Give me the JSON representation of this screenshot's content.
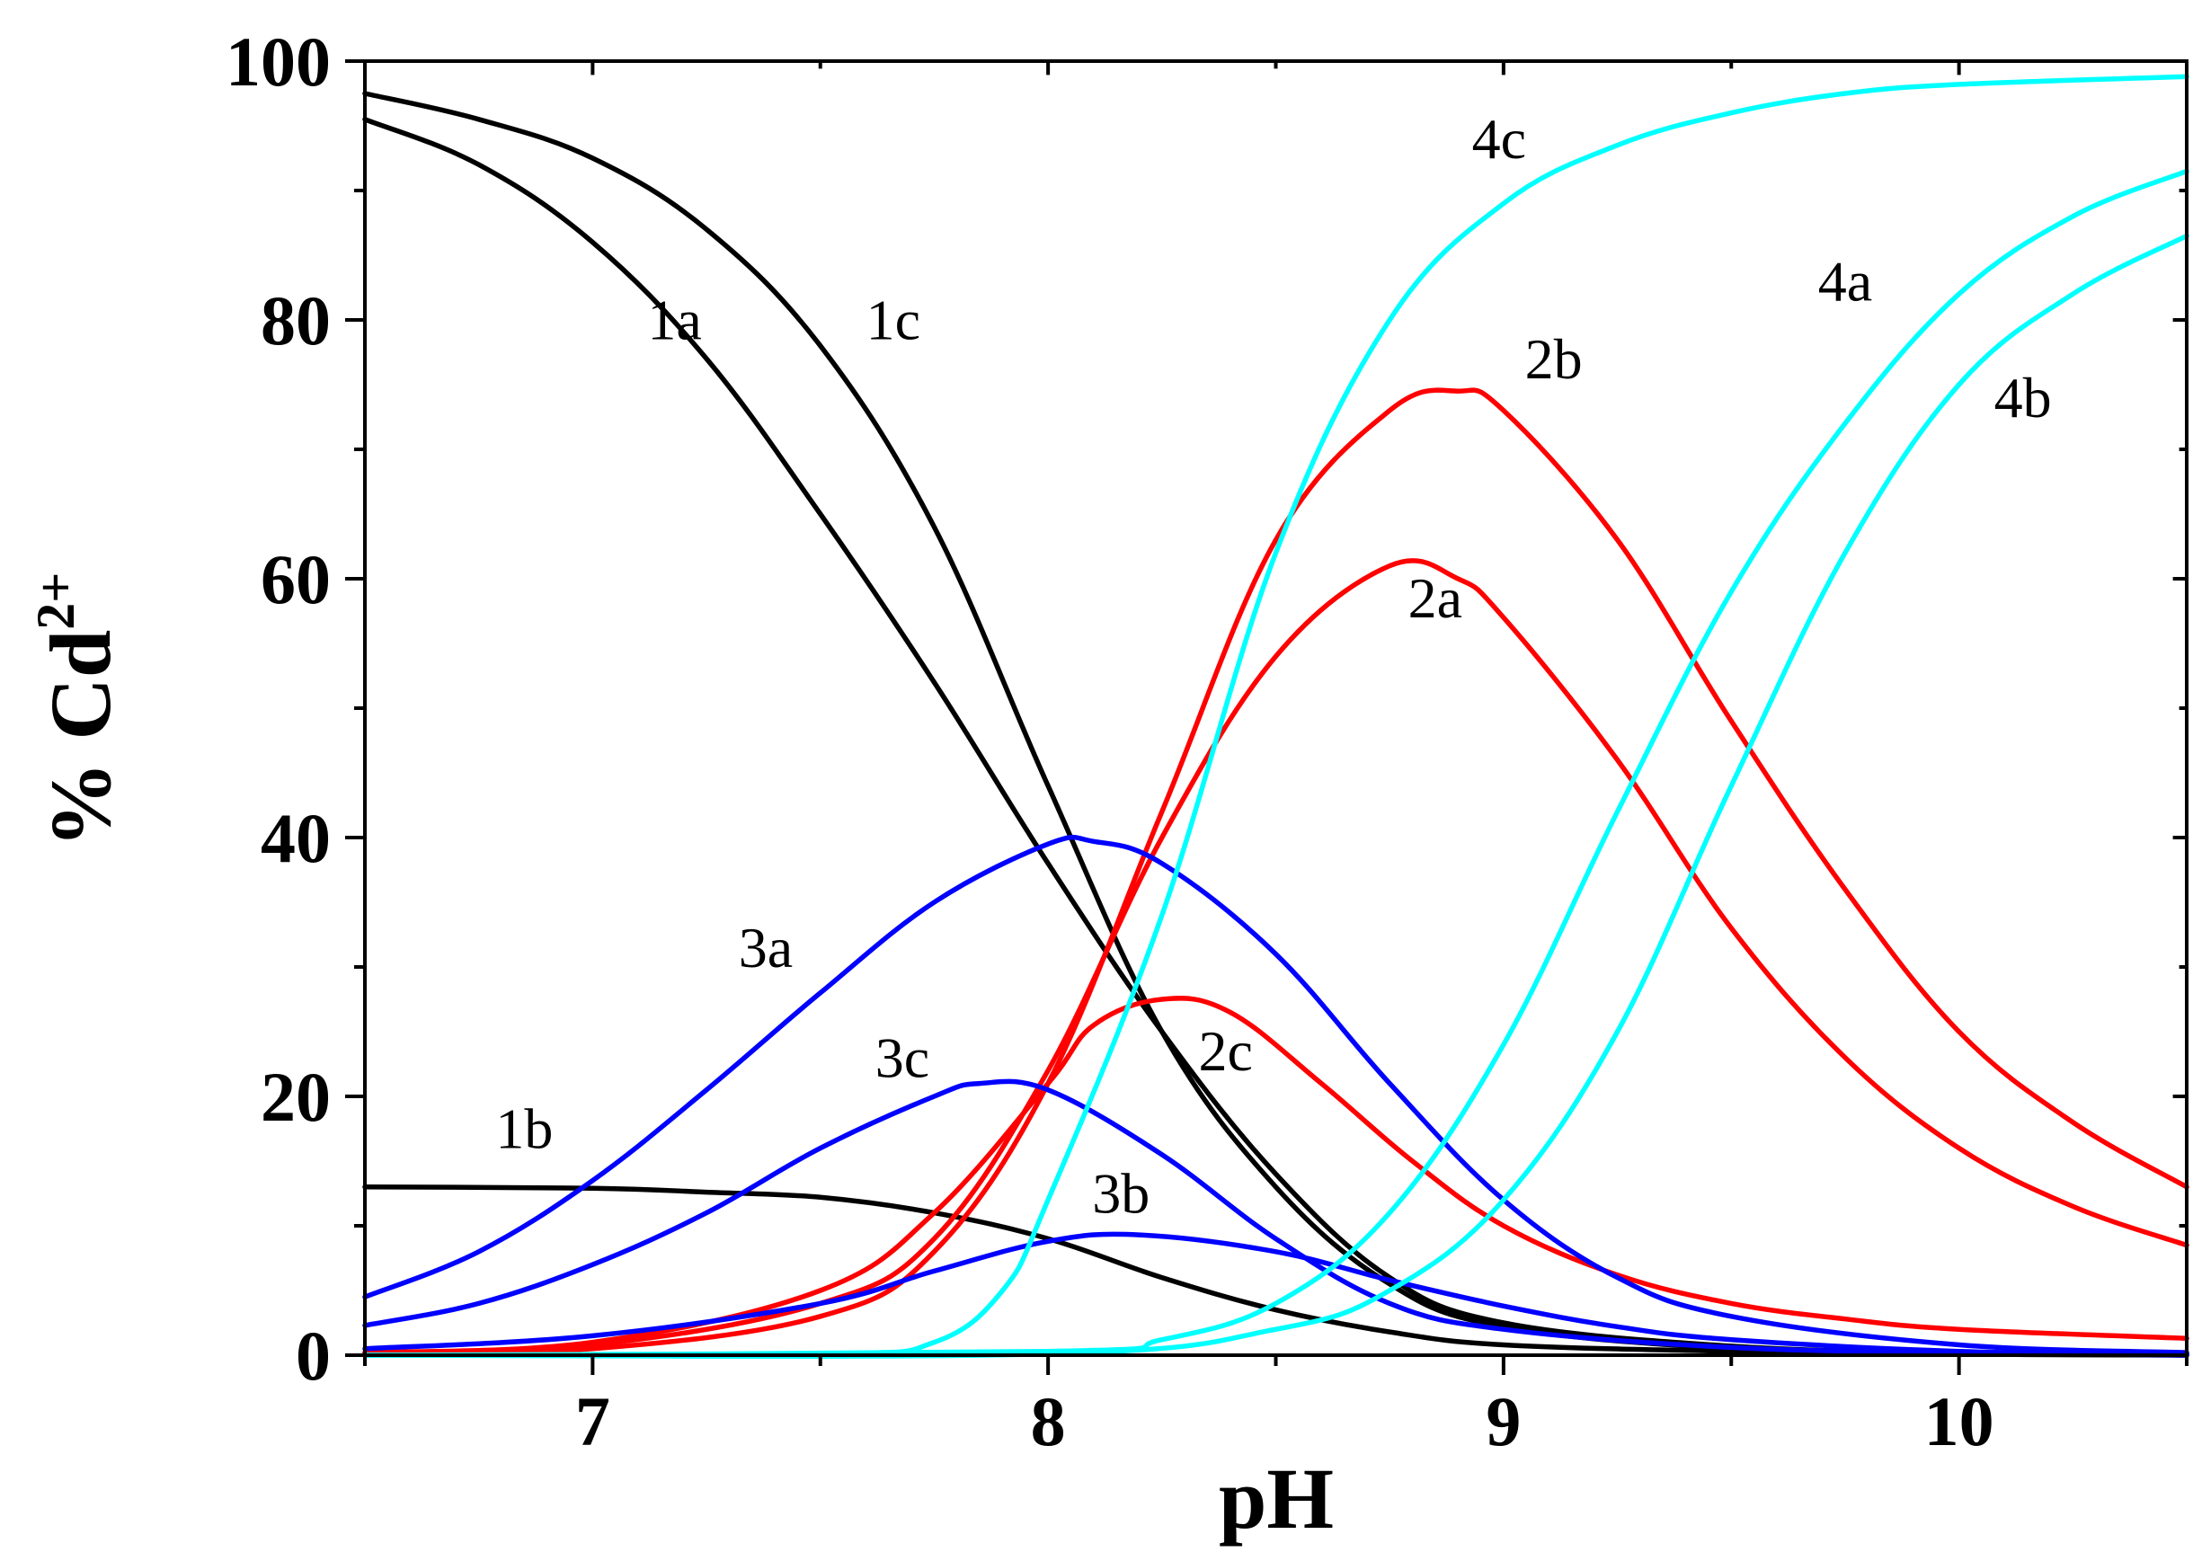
{
  "chart_data": {
    "type": "line",
    "title": "",
    "xlabel": "pH",
    "ylabel": "% Cd",
    "ylabel_superscript": "2+",
    "xlim": [
      6.5,
      10.5
    ],
    "ylim": [
      0,
      100
    ],
    "x_ticks": [
      7,
      8,
      9,
      10
    ],
    "y_ticks": [
      0,
      20,
      40,
      60,
      80,
      100
    ],
    "grid": false,
    "colors": {
      "black": "#000000",
      "red": "#ff0000",
      "blue": "#0000ff",
      "cyan": "#00ffff"
    },
    "series": [
      {
        "name": "1a",
        "color": "#000000",
        "x": [
          6.5,
          6.75,
          7.0,
          7.25,
          7.5,
          7.75,
          8.0,
          8.25,
          8.5,
          8.75,
          9.0,
          9.5,
          10.0,
          10.5
        ],
        "y": [
          95.5,
          92,
          86,
          77,
          65,
          52,
          38,
          25,
          14,
          6,
          2.5,
          0.7,
          0.2,
          0.1
        ]
      },
      {
        "name": "1b",
        "color": "#000000",
        "x": [
          6.5,
          7.0,
          7.25,
          7.5,
          7.75,
          8.0,
          8.25,
          8.5,
          8.75,
          9.0,
          9.5,
          10.0,
          10.5
        ],
        "y": [
          13,
          12.9,
          12.6,
          12.2,
          11,
          9,
          6,
          3.5,
          1.8,
          0.8,
          0.3,
          0.1,
          0
        ]
      },
      {
        "name": "1c",
        "color": "#000000",
        "x": [
          6.5,
          6.75,
          7.0,
          7.25,
          7.5,
          7.75,
          8.0,
          8.25,
          8.5,
          8.75,
          9.0,
          9.5,
          10.0,
          10.5
        ],
        "y": [
          97.5,
          95.5,
          92.5,
          87,
          78,
          64,
          44,
          25,
          13,
          5.5,
          2.2,
          0.5,
          0.1,
          0
        ]
      },
      {
        "name": "2a",
        "color": "#ff0000",
        "x": [
          6.5,
          7.0,
          7.5,
          7.75,
          8.0,
          8.25,
          8.5,
          8.75,
          8.9,
          9.0,
          9.25,
          9.5,
          9.75,
          10.0,
          10.25,
          10.5
        ],
        "y": [
          0.2,
          0.8,
          4,
          9,
          22,
          40,
          54,
          61,
          60,
          57,
          46,
          33,
          23,
          16,
          11.5,
          8.5
        ]
      },
      {
        "name": "2b",
        "color": "#ff0000",
        "x": [
          6.5,
          7.0,
          7.5,
          7.75,
          8.0,
          8.25,
          8.5,
          8.75,
          8.9,
          9.0,
          9.25,
          9.5,
          9.75,
          10.0,
          10.25,
          10.5
        ],
        "y": [
          0.2,
          0.5,
          3,
          8,
          21,
          42,
          63,
          73,
          74.5,
          73,
          63,
          49,
          36,
          25,
          18,
          13
        ]
      },
      {
        "name": "2c",
        "color": "#ff0000",
        "x": [
          6.5,
          7.0,
          7.5,
          7.75,
          8.0,
          8.1,
          8.25,
          8.4,
          8.6,
          8.8,
          9.0,
          9.25,
          9.5,
          9.75,
          10.0,
          10.5
        ],
        "y": [
          0.2,
          1,
          5,
          11,
          21,
          25.5,
          27.5,
          26.5,
          21,
          15,
          10,
          6.2,
          4,
          2.8,
          2,
          1.3
        ]
      },
      {
        "name": "3a",
        "color": "#0000ff",
        "x": [
          6.5,
          6.75,
          7.0,
          7.25,
          7.5,
          7.75,
          8.0,
          8.1,
          8.25,
          8.5,
          8.75,
          9.0,
          9.25,
          9.5,
          10.0,
          10.5
        ],
        "y": [
          4.5,
          8,
          13.5,
          20.5,
          28,
          35,
          39.5,
          39.7,
          38,
          31,
          21,
          12,
          6,
          3,
          0.8,
          0.2
        ]
      },
      {
        "name": "3b",
        "color": "#0000ff",
        "x": [
          6.5,
          7.0,
          7.5,
          7.75,
          8.0,
          8.2,
          8.5,
          8.75,
          9.0,
          9.25,
          9.5,
          10.0,
          10.5
        ],
        "y": [
          0.5,
          1.5,
          4,
          6.5,
          8.8,
          9.3,
          8,
          5.8,
          3.8,
          2.2,
          1.2,
          0.3,
          0.1
        ]
      },
      {
        "name": "3c",
        "color": "#0000ff",
        "x": [
          6.5,
          6.75,
          7.0,
          7.25,
          7.5,
          7.75,
          7.85,
          8.0,
          8.25,
          8.5,
          8.75,
          9.0,
          9.5,
          10.0,
          10.5
        ],
        "y": [
          2.3,
          4,
          7,
          11,
          16,
          20,
          21,
          20.5,
          15.5,
          9,
          4,
          2,
          0.6,
          0.2,
          0
        ]
      },
      {
        "name": "4a",
        "color": "#00ffff",
        "x": [
          6.5,
          8.0,
          8.25,
          8.5,
          8.75,
          9.0,
          9.25,
          9.5,
          9.75,
          10.0,
          10.25,
          10.5
        ],
        "y": [
          0,
          0.3,
          1.2,
          4,
          11,
          24,
          42,
          59,
          72,
          82,
          88,
          91.5
        ]
      },
      {
        "name": "4b",
        "color": "#00ffff",
        "x": [
          6.5,
          8.0,
          8.5,
          8.75,
          9.0,
          9.25,
          9.5,
          9.75,
          10.0,
          10.25,
          10.5
        ],
        "y": [
          0,
          0.1,
          2,
          5,
          12,
          25,
          44,
          62,
          75,
          82,
          86.5
        ]
      },
      {
        "name": "4c",
        "color": "#00ffff",
        "x": [
          6.5,
          7.5,
          7.75,
          7.9,
          8.0,
          8.25,
          8.5,
          8.75,
          9.0,
          9.25,
          9.5,
          9.75,
          10.0,
          10.5
        ],
        "y": [
          0,
          0.1,
          1,
          5,
          12,
          34,
          62,
          80,
          89,
          93.5,
          96,
          97.5,
          98.2,
          98.8
        ]
      }
    ],
    "annotations": [
      {
        "text": "1a",
        "x": 7.18,
        "y": 78.5
      },
      {
        "text": "1c",
        "x": 7.66,
        "y": 78.5
      },
      {
        "text": "1b",
        "x": 6.85,
        "y": 16
      },
      {
        "text": "2a",
        "x": 8.85,
        "y": 57
      },
      {
        "text": "2b",
        "x": 9.11,
        "y": 75.5
      },
      {
        "text": "2c",
        "x": 8.39,
        "y": 22
      },
      {
        "text": "3a",
        "x": 7.38,
        "y": 30
      },
      {
        "text": "3c",
        "x": 7.68,
        "y": 21.5
      },
      {
        "text": "3b",
        "x": 8.16,
        "y": 11
      },
      {
        "text": "4c",
        "x": 8.99,
        "y": 92.5
      },
      {
        "text": "4a",
        "x": 9.75,
        "y": 81.5
      },
      {
        "text": "4b",
        "x": 10.14,
        "y": 72.5
      }
    ]
  }
}
